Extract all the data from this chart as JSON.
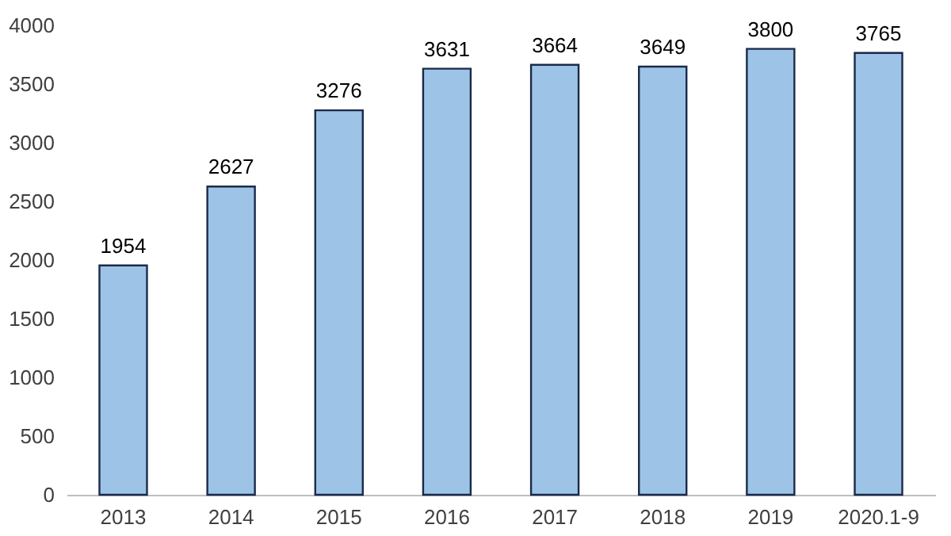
{
  "chart_data": {
    "type": "bar",
    "categories": [
      "2013",
      "2014",
      "2015",
      "2016",
      "2017",
      "2018",
      "2019",
      "2020.1-9"
    ],
    "values": [
      1954,
      2627,
      3276,
      3631,
      3664,
      3649,
      3800,
      3765
    ],
    "color": "#9dc3e6",
    "ylim": [
      0,
      4000
    ],
    "yticks": [
      0,
      500,
      1000,
      1500,
      2000,
      2500,
      3000,
      3500,
      4000
    ],
    "grid": false,
    "data_labels": true
  }
}
